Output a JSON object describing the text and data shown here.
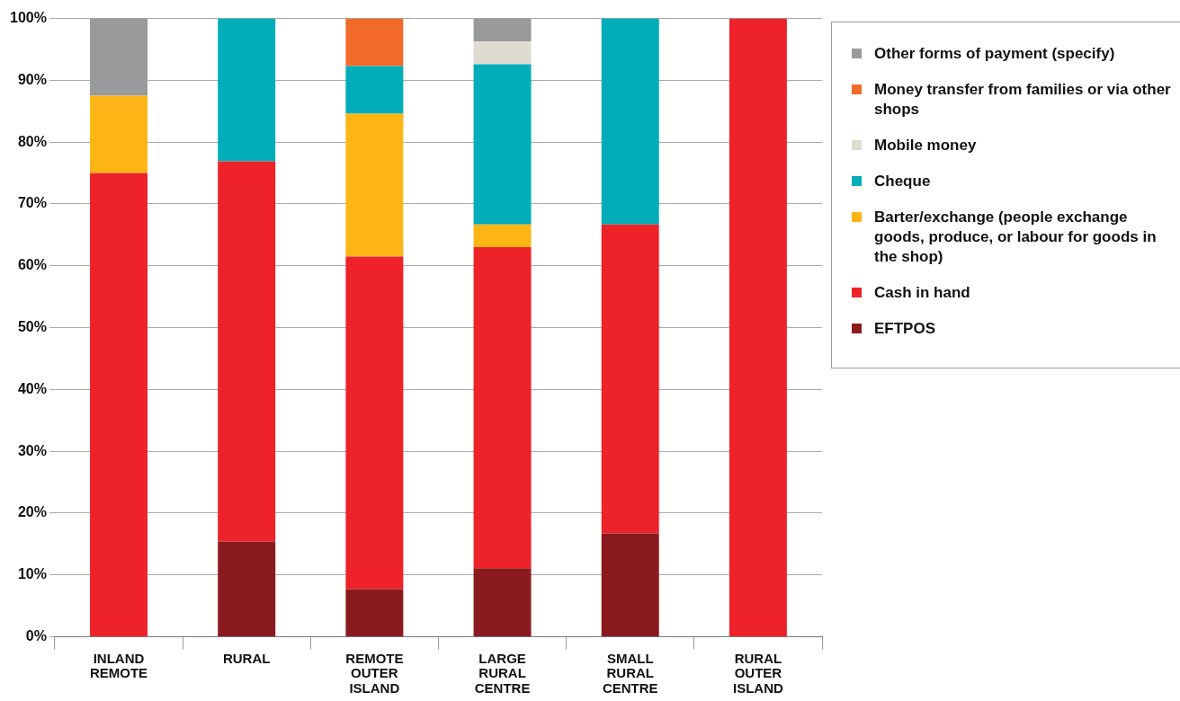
{
  "chart_data": {
    "type": "bar",
    "stacked": true,
    "categories": [
      "INLAND REMOTE",
      "RURAL",
      "REMOTE OUTER ISLAND",
      "LARGE RURAL CENTRE",
      "SMALL RURAL CENTRE",
      "RURAL OUTER ISLAND"
    ],
    "series": [
      {
        "name": "EFTPOS",
        "color": "#8b1a1e",
        "values": [
          null,
          15.4,
          7.7,
          11.1,
          16.7,
          null
        ]
      },
      {
        "name": "Cash in hand",
        "color": "#ee2229",
        "values": [
          75,
          61.5,
          53.8,
          51.9,
          50,
          100
        ]
      },
      {
        "name": "Barter/exchange (people exchange goods, produce, or labour for goods in the shop)",
        "color": "#fdb515",
        "values": [
          12.5,
          null,
          23.1,
          3.7,
          null,
          null
        ]
      },
      {
        "name": "Cheque",
        "color": "#00adb9",
        "values": [
          null,
          23.1,
          7.7,
          25.9,
          33.3,
          null
        ]
      },
      {
        "name": "Mobile money",
        "color": "#e0dbd0",
        "values": [
          null,
          null,
          null,
          3.7,
          null,
          null
        ]
      },
      {
        "name": "Money transfer from families or via other shops",
        "color": "#f26a2a",
        "values": [
          null,
          null,
          7.7,
          null,
          null,
          null
        ]
      },
      {
        "name": "Other forms of payment (specify)",
        "color": "#999a9b",
        "values": [
          12.5,
          null,
          null,
          3.7,
          null,
          null
        ]
      }
    ],
    "ylim": [
      0,
      100
    ],
    "yticks": [
      {
        "value": 0,
        "label": "0%"
      },
      {
        "value": 10,
        "label": "10%"
      },
      {
        "value": 20,
        "label": "20%"
      },
      {
        "value": 30,
        "label": "30%"
      },
      {
        "value": 40,
        "label": "40%"
      },
      {
        "value": 50,
        "label": "50%"
      },
      {
        "value": 60,
        "label": "60%"
      },
      {
        "value": 70,
        "label": "70%"
      },
      {
        "value": 80,
        "label": "80%"
      },
      {
        "value": 90,
        "label": "90%"
      },
      {
        "value": 100,
        "label": "100%"
      }
    ],
    "grid": "y",
    "legend": "right"
  }
}
